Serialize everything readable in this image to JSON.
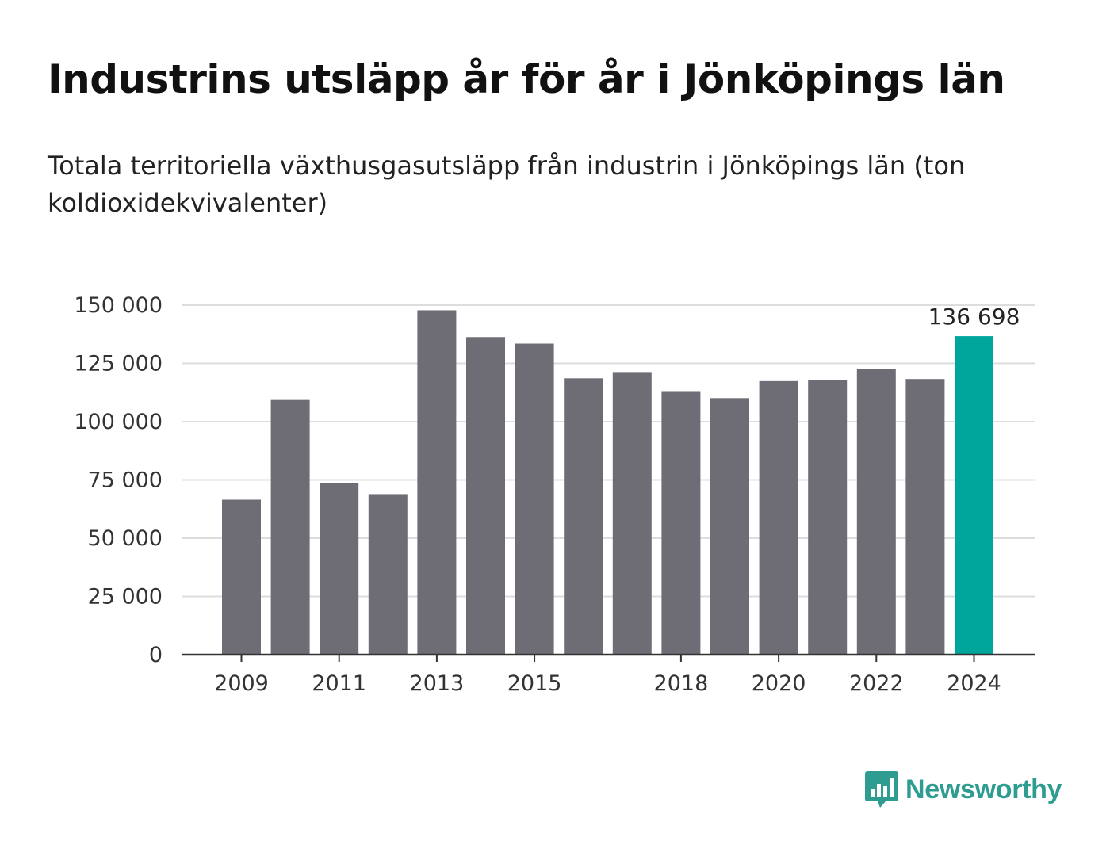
{
  "header": {
    "title": "Industrins utsläpp år för år i Jönköpings län",
    "subtitle": "Totala territoriella växthusgasutsläpp från industrin i Jönköpings län (ton koldioxidekvivalenter)"
  },
  "logo": {
    "text": "Newsworthy",
    "icon": "bar-chart-speech-bubble-icon",
    "color": "#2f9c91"
  },
  "chart_data": {
    "type": "bar",
    "title": "Industrins utsläpp år för år i Jönköpings län",
    "subtitle": "Totala territoriella växthusgasutsläpp från industrin i Jönköpings län (ton koldioxidekvivalenter)",
    "categories": [
      "2009",
      "2010",
      "2011",
      "2012",
      "2013",
      "2014",
      "2015",
      "2016",
      "2017",
      "2018",
      "2019",
      "2020",
      "2021",
      "2022",
      "2023",
      "2024"
    ],
    "values": [
      66500,
      109300,
      73800,
      68900,
      147800,
      136300,
      133500,
      118600,
      121300,
      113100,
      110100,
      117400,
      118000,
      122500,
      118300,
      136698
    ],
    "ylim": [
      0,
      150000
    ],
    "y_ticks": [
      0,
      25000,
      50000,
      75000,
      100000,
      125000,
      150000
    ],
    "y_tick_labels": [
      "0",
      "25 000",
      "50 000",
      "75 000",
      "100 000",
      "125 000",
      "150 000"
    ],
    "x_tick_labels": [
      "2009",
      "2011",
      "2013",
      "2015",
      "2018",
      "2020",
      "2022",
      "2024"
    ],
    "annotations": [
      {
        "category": "2024",
        "text": "136 698"
      }
    ],
    "grid": true,
    "colors": {
      "default": "#6e6d75",
      "highlight": "#00a59b",
      "grid": "#dddddd",
      "axis": "#333333"
    },
    "highlight_category": "2024",
    "xlabel": "",
    "ylabel": ""
  }
}
